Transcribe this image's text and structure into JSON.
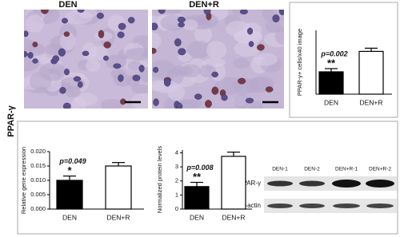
{
  "figure_label": "PPAR-γ",
  "images": [
    {
      "label": "DEN"
    },
    {
      "label": "DEN+R"
    }
  ],
  "chart_data": [
    {
      "type": "bar",
      "y_label": "PPAR-γ+ cells/x40 image",
      "categories": [
        "DEN",
        "DEN+R"
      ],
      "values": [
        3.5,
        6.7
      ],
      "errors": [
        0.5,
        0.5
      ],
      "colors": [
        "#000000",
        "#ffffff"
      ],
      "ylim": [
        0,
        10
      ],
      "p_value": "p=0.002",
      "significance": "**"
    },
    {
      "type": "bar",
      "y_label": "Relative gene expression",
      "categories": [
        "DEN",
        "DEN+R"
      ],
      "values": [
        0.01,
        0.015
      ],
      "errors": [
        0.0015,
        0.0012
      ],
      "colors": [
        "#000000",
        "#ffffff"
      ],
      "ylim": [
        0,
        0.02
      ],
      "yticks": [
        {
          "value": 0,
          "label": "0.000"
        },
        {
          "value": 0.005,
          "label": "0.005"
        },
        {
          "value": 0.01,
          "label": "0.010"
        },
        {
          "value": 0.015,
          "label": "0.015"
        },
        {
          "value": 0.02,
          "label": "0.020"
        }
      ],
      "p_value": "p=0.049",
      "significance": "*"
    },
    {
      "type": "bar",
      "y_label": "Normalized protein levels",
      "categories": [
        "DEN",
        "DEN+R"
      ],
      "values": [
        1.6,
        3.75
      ],
      "errors": [
        0.3,
        0.3
      ],
      "colors": [
        "#000000",
        "#ffffff"
      ],
      "ylim": [
        0,
        4.2
      ],
      "yticks": [
        0,
        1,
        2,
        3,
        4
      ],
      "p_value": "p=0.008",
      "significance": "**"
    }
  ],
  "western_blot": {
    "lanes": [
      "DEN-1",
      "DEN-2",
      "DEN+R-1",
      "DEN+R-2"
    ],
    "rows": [
      "PPAR-γ",
      "β-actin"
    ]
  }
}
